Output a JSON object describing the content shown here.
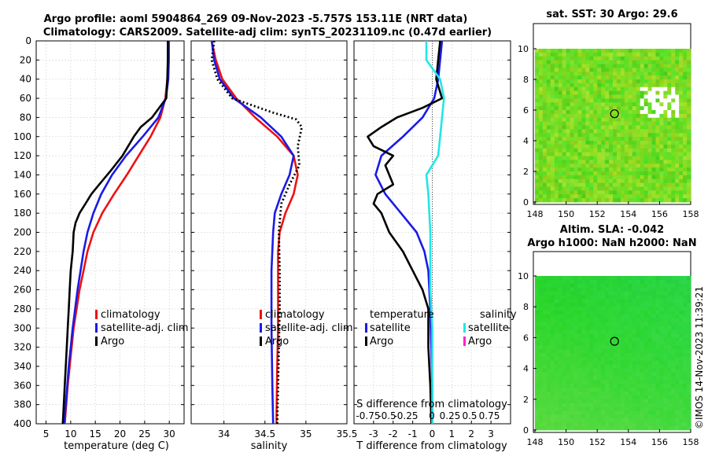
{
  "header": {
    "title_line1": "Argo profile: aoml 5904864_269 09-Nov-2023 -5.757S 153.11E (NRT data)",
    "title_line2": "Climatology: CARS2009. Satellite-adj clim: synTS_20231109.nc (0.47d earlier)"
  },
  "colors": {
    "climatology": "#ee1111",
    "satellite": "#1a1ae6",
    "argo": "#000000",
    "salinity_satellite": "#22e6e6",
    "salinity_argo": "#ff22cc",
    "sst_map": "#8ee030",
    "sla_map": "#33d633"
  },
  "chart_data": [
    {
      "type": "line",
      "name": "temperature-panel",
      "xlabel": "temperature (deg C)",
      "ylabel": "",
      "xlim": [
        3,
        33
      ],
      "ylim": [
        400,
        0
      ],
      "xticks": [
        5,
        10,
        15,
        20,
        25,
        30
      ],
      "yticks": [
        0,
        20,
        40,
        60,
        80,
        100,
        120,
        140,
        160,
        180,
        200,
        220,
        240,
        260,
        280,
        300,
        320,
        340,
        360,
        380,
        400
      ],
      "grid": true,
      "legend_position": "bottom-right",
      "legend": [
        "climatology",
        "satellite-adj. clim",
        "Argo"
      ],
      "series": [
        {
          "name": "climatology",
          "color_key": "climatology",
          "points": [
            [
              29.8,
              0
            ],
            [
              29.8,
              20
            ],
            [
              29.6,
              40
            ],
            [
              29.2,
              60
            ],
            [
              28.2,
              80
            ],
            [
              26.2,
              100
            ],
            [
              23.8,
              120
            ],
            [
              21.4,
              140
            ],
            [
              18.8,
              160
            ],
            [
              16.4,
              180
            ],
            [
              14.6,
              200
            ],
            [
              13.4,
              220
            ],
            [
              12.6,
              240
            ],
            [
              11.8,
              260
            ],
            [
              11.2,
              280
            ],
            [
              10.6,
              300
            ],
            [
              10.2,
              320
            ],
            [
              9.8,
              340
            ],
            [
              9.4,
              360
            ],
            [
              9.1,
              380
            ],
            [
              8.8,
              400
            ]
          ]
        },
        {
          "name": "satellite-adj. clim",
          "color_key": "satellite",
          "points": [
            [
              29.9,
              0
            ],
            [
              29.9,
              20
            ],
            [
              29.8,
              40
            ],
            [
              29.3,
              60
            ],
            [
              27.8,
              80
            ],
            [
              24.6,
              100
            ],
            [
              21.2,
              120
            ],
            [
              18.4,
              140
            ],
            [
              16.2,
              160
            ],
            [
              14.6,
              180
            ],
            [
              13.4,
              200
            ],
            [
              12.6,
              220
            ],
            [
              12.0,
              240
            ],
            [
              11.4,
              260
            ],
            [
              10.9,
              280
            ],
            [
              10.4,
              300
            ],
            [
              10.0,
              320
            ],
            [
              9.6,
              340
            ],
            [
              9.3,
              360
            ],
            [
              9.0,
              380
            ],
            [
              8.7,
              400
            ]
          ]
        },
        {
          "name": "Argo",
          "color_key": "argo",
          "points": [
            [
              29.7,
              0
            ],
            [
              29.7,
              20
            ],
            [
              29.6,
              40
            ],
            [
              29.4,
              60
            ],
            [
              26.5,
              80
            ],
            [
              24.2,
              90
            ],
            [
              22.8,
              100
            ],
            [
              20.5,
              120
            ],
            [
              18.2,
              135
            ],
            [
              15.8,
              150
            ],
            [
              14.2,
              160
            ],
            [
              13.0,
              170
            ],
            [
              11.8,
              180
            ],
            [
              11.0,
              190
            ],
            [
              10.6,
              200
            ],
            [
              10.4,
              220
            ],
            [
              10.0,
              240
            ],
            [
              9.8,
              260
            ],
            [
              9.6,
              280
            ],
            [
              9.4,
              300
            ],
            [
              9.2,
              320
            ],
            [
              9.0,
              340
            ],
            [
              8.8,
              360
            ],
            [
              8.6,
              380
            ],
            [
              8.4,
              400
            ]
          ]
        }
      ]
    },
    {
      "type": "line",
      "name": "salinity-panel",
      "xlabel": "salinity",
      "xlim": [
        33.6,
        35.5
      ],
      "ylim": [
        400,
        0
      ],
      "xticks": [
        34,
        34.5,
        35,
        35.5
      ],
      "grid": true,
      "legend_position": "bottom-right",
      "legend": [
        "climatology",
        "satellite-adj. clim",
        "Argo"
      ],
      "series": [
        {
          "name": "climatology",
          "color_key": "climatology",
          "points": [
            [
              33.85,
              0
            ],
            [
              33.9,
              20
            ],
            [
              33.98,
              40
            ],
            [
              34.15,
              60
            ],
            [
              34.38,
              80
            ],
            [
              34.65,
              100
            ],
            [
              34.85,
              120
            ],
            [
              34.9,
              140
            ],
            [
              34.85,
              160
            ],
            [
              34.75,
              180
            ],
            [
              34.68,
              200
            ],
            [
              34.66,
              220
            ],
            [
              34.66,
              260
            ],
            [
              34.66,
              300
            ],
            [
              34.65,
              340
            ],
            [
              34.64,
              400
            ]
          ]
        },
        {
          "name": "satellite-adj. clim",
          "color_key": "satellite",
          "points": [
            [
              33.85,
              0
            ],
            [
              33.88,
              20
            ],
            [
              33.95,
              40
            ],
            [
              34.12,
              60
            ],
            [
              34.45,
              80
            ],
            [
              34.7,
              100
            ],
            [
              34.85,
              120
            ],
            [
              34.8,
              140
            ],
            [
              34.7,
              160
            ],
            [
              34.62,
              180
            ],
            [
              34.6,
              200
            ],
            [
              34.58,
              240
            ],
            [
              34.58,
              300
            ],
            [
              34.59,
              360
            ],
            [
              34.6,
              400
            ]
          ]
        },
        {
          "name": "Argo",
          "color_key": "argo",
          "dashed": true,
          "points": [
            [
              33.88,
              0
            ],
            [
              33.85,
              20
            ],
            [
              33.92,
              40
            ],
            [
              34.1,
              60
            ],
            [
              34.6,
              75
            ],
            [
              34.88,
              82
            ],
            [
              34.95,
              90
            ],
            [
              34.9,
              110
            ],
            [
              34.92,
              130
            ],
            [
              34.8,
              150
            ],
            [
              34.7,
              170
            ],
            [
              34.67,
              200
            ],
            [
              34.68,
              240
            ],
            [
              34.68,
              280
            ],
            [
              34.67,
              320
            ],
            [
              34.66,
              360
            ],
            [
              34.65,
              400
            ]
          ]
        }
      ]
    },
    {
      "type": "line",
      "name": "difference-panel",
      "xlabel": "T difference from climatology",
      "xlim": [
        -4,
        4
      ],
      "ylim": [
        400,
        0
      ],
      "xticks": [
        -3,
        -2,
        -1,
        0,
        1,
        2,
        3
      ],
      "top_axis_label": "S difference from climatology",
      "top_ticks": [
        "-0.75",
        "-0.5",
        "-0.25",
        "0",
        "0.25",
        "0.5",
        "0.75"
      ],
      "grid": true,
      "legend_position": "bottom",
      "legend_titles": [
        "temperature",
        "salinity"
      ],
      "legend": [
        "satellite",
        "Argo",
        "satellite",
        "Argo"
      ],
      "series": [
        {
          "name": "T satellite",
          "color_key": "satellite",
          "points": [
            [
              0.5,
              0
            ],
            [
              0.4,
              20
            ],
            [
              0.3,
              40
            ],
            [
              0.1,
              60
            ],
            [
              -0.5,
              80
            ],
            [
              -1.5,
              100
            ],
            [
              -2.6,
              120
            ],
            [
              -2.9,
              140
            ],
            [
              -2.4,
              160
            ],
            [
              -1.6,
              180
            ],
            [
              -0.8,
              200
            ],
            [
              -0.4,
              220
            ],
            [
              -0.2,
              240
            ],
            [
              -0.1,
              280
            ],
            [
              -0.05,
              320
            ],
            [
              0,
              360
            ],
            [
              0,
              400
            ]
          ]
        },
        {
          "name": "T Argo",
          "color_key": "argo",
          "points": [
            [
              0.4,
              0
            ],
            [
              0.3,
              20
            ],
            [
              0.2,
              40
            ],
            [
              0.5,
              60
            ],
            [
              -0.5,
              70
            ],
            [
              -1.8,
              80
            ],
            [
              -2.6,
              90
            ],
            [
              -3.3,
              100
            ],
            [
              -3.0,
              110
            ],
            [
              -2.0,
              120
            ],
            [
              -2.4,
              130
            ],
            [
              -2.0,
              150
            ],
            [
              -2.8,
              160
            ],
            [
              -3.0,
              170
            ],
            [
              -2.6,
              180
            ],
            [
              -2.2,
              200
            ],
            [
              -1.5,
              220
            ],
            [
              -1.0,
              240
            ],
            [
              -0.5,
              260
            ],
            [
              -0.2,
              280
            ],
            [
              -0.2,
              320
            ],
            [
              -0.1,
              360
            ],
            [
              -0.05,
              400
            ]
          ]
        },
        {
          "name": "S satellite",
          "color_key": "salinity_satellite",
          "points": [
            [
              -0.3,
              0
            ],
            [
              -0.3,
              20
            ],
            [
              0.4,
              40
            ],
            [
              0.6,
              60
            ],
            [
              0.5,
              80
            ],
            [
              0.4,
              100
            ],
            [
              0.3,
              120
            ],
            [
              -0.3,
              140
            ],
            [
              -0.2,
              160
            ],
            [
              -0.1,
              200
            ],
            [
              -0.1,
              260
            ],
            [
              0,
              300
            ],
            [
              0,
              400
            ]
          ]
        }
      ]
    },
    {
      "type": "heatmap",
      "name": "sst-map",
      "title": "sat. SST: 30 Argo: 29.6",
      "xticks": [
        148,
        150,
        152,
        154,
        156,
        158
      ],
      "yticks": [
        0,
        2,
        4,
        6,
        8,
        10
      ],
      "xlim": [
        148,
        158
      ],
      "ylim": [
        0,
        10
      ],
      "float_position": [
        153.11,
        5.76
      ]
    },
    {
      "type": "heatmap",
      "name": "sla-map",
      "title_line1": "Altim. SLA: -0.042",
      "title_line2": "Argo h1000: NaN h2000: NaN",
      "xticks": [
        148,
        150,
        152,
        154,
        156,
        158
      ],
      "yticks": [
        0,
        2,
        4,
        6,
        8,
        10
      ],
      "xlim": [
        148,
        158
      ],
      "ylim": [
        0,
        10
      ],
      "float_position": [
        153.11,
        5.76
      ]
    }
  ],
  "footer": {
    "watermark": "©IMOS 14-Nov-2023 11:39:21"
  }
}
